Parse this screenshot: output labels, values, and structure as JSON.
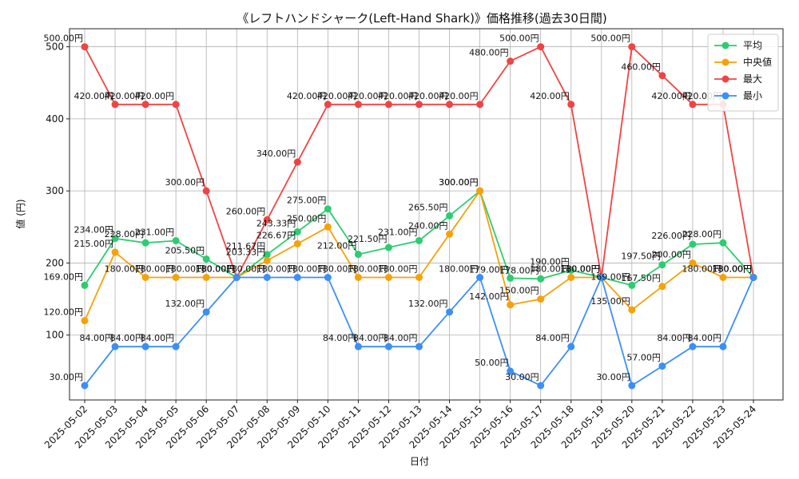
{
  "chart_data": {
    "type": "line",
    "title": "《レフトハンドシャーク(Left-Hand Shark)》価格推移(過去30日間)",
    "xlabel": "日付",
    "ylabel": "値 (円)",
    "ylim": [
      10,
      525
    ],
    "yticks": [
      100,
      200,
      300,
      400,
      500
    ],
    "grid": true,
    "legend_position": "top-right",
    "label_suffix": "円",
    "categories": [
      "2025-05-02",
      "2025-05-03",
      "2025-05-04",
      "2025-05-05",
      "2025-05-06",
      "2025-05-07",
      "2025-05-08",
      "2025-05-09",
      "2025-05-10",
      "2025-05-11",
      "2025-05-12",
      "2025-05-13",
      "2025-05-14",
      "2025-05-15",
      "2025-05-16",
      "2025-05-17",
      "2025-05-18",
      "2025-05-19",
      "2025-05-20",
      "2025-05-21",
      "2025-05-22",
      "2025-05-23",
      "2025-05-24"
    ],
    "series": [
      {
        "name": "平均",
        "color": "#2ecc71",
        "values": [
          169.0,
          234.0,
          228.0,
          231.0,
          205.5,
          180.0,
          211.67,
          243.33,
          275.0,
          212.0,
          221.5,
          231.0,
          265.5,
          300.0,
          179.0,
          178.0,
          190.0,
          180.0,
          169.0,
          197.5,
          226.0,
          228.0,
          180.0
        ]
      },
      {
        "name": "中央値",
        "color": "#f5a20a",
        "values": [
          120.0,
          215.0,
          180.0,
          180.0,
          180.0,
          180.0,
          203.33,
          226.67,
          250.0,
          180.0,
          180.0,
          180.0,
          240.0,
          300.0,
          142.0,
          150.0,
          180.0,
          180.0,
          135.0,
          167.5,
          200.0,
          180.0,
          180.0
        ]
      },
      {
        "name": "最大",
        "color": "#ef4444",
        "values": [
          500.0,
          420.0,
          420.0,
          420.0,
          300.0,
          180.0,
          260.0,
          340.0,
          420.0,
          420.0,
          420.0,
          420.0,
          420.0,
          420.0,
          480.0,
          500.0,
          420.0,
          180.0,
          500.0,
          460.0,
          420.0,
          420.0,
          180.0
        ]
      },
      {
        "name": "最小",
        "color": "#3b8ff5",
        "values": [
          30.0,
          84.0,
          84.0,
          84.0,
          132.0,
          180.0,
          180.0,
          180.0,
          180.0,
          84.0,
          84.0,
          84.0,
          132.0,
          180.0,
          50.0,
          30.0,
          84.0,
          180.0,
          30.0,
          57.0,
          84.0,
          84.0,
          180.0
        ]
      }
    ]
  }
}
